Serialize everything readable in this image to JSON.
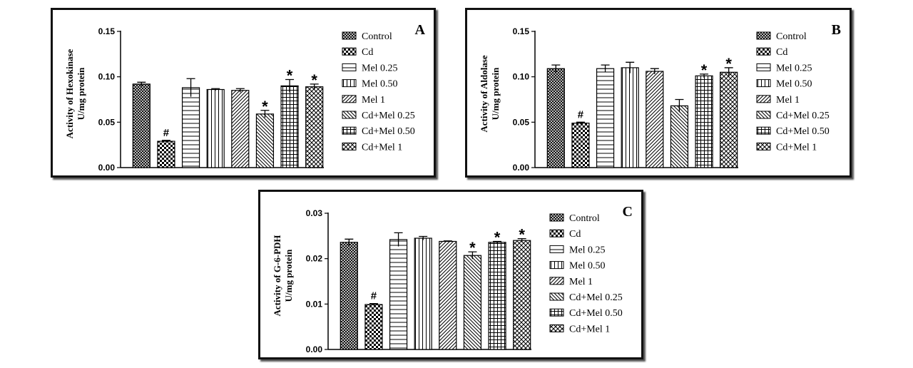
{
  "legend_items": [
    "Control",
    "Cd",
    "Mel 0.25",
    "Mel 0.50",
    "Mel 1",
    "Cd+Mel 0.25",
    "Cd+Mel 0.50",
    "Cd+Mel 1"
  ],
  "chart_data": [
    {
      "type": "bar",
      "panel_letter": "A",
      "title": "",
      "ylabel": [
        "Activity of Hexokinase",
        "U/mg protein"
      ],
      "xlabel": "",
      "ylim": [
        0,
        0.15
      ],
      "yticks": [
        "0.00",
        "0.05",
        "0.10",
        "0.15"
      ],
      "categories": [
        "Control",
        "Cd",
        "Mel 0.25",
        "Mel 0.50",
        "Mel 1",
        "Cd+Mel 0.25",
        "Cd+Mel 0.50",
        "Cd+Mel 1"
      ],
      "values": [
        0.092,
        0.029,
        0.088,
        0.086,
        0.085,
        0.059,
        0.09,
        0.089
      ],
      "errors": [
        0.002,
        0.001,
        0.01,
        0.001,
        0.002,
        0.004,
        0.007,
        0.003
      ],
      "marks": [
        "",
        "#",
        "",
        "",
        "",
        "*",
        "*",
        "*"
      ],
      "legend": "right",
      "grid": false
    },
    {
      "type": "bar",
      "panel_letter": "B",
      "title": "",
      "ylabel": [
        "Activity of Aldolase",
        "U/mg protein"
      ],
      "xlabel": "",
      "ylim": [
        0,
        0.15
      ],
      "yticks": [
        "0.00",
        "0.05",
        "0.10",
        "0.15"
      ],
      "categories": [
        "Control",
        "Cd",
        "Mel 0.25",
        "Mel 0.50",
        "Mel 1",
        "Cd+Mel 0.25",
        "Cd+Mel 0.50",
        "Cd+Mel 1"
      ],
      "values": [
        0.109,
        0.049,
        0.109,
        0.11,
        0.106,
        0.068,
        0.101,
        0.105
      ],
      "errors": [
        0.004,
        0.001,
        0.004,
        0.006,
        0.003,
        0.007,
        0.002,
        0.005
      ],
      "marks": [
        "",
        "#",
        "",
        "",
        "",
        "",
        "*",
        "*"
      ],
      "legend": "right",
      "grid": false
    },
    {
      "type": "bar",
      "panel_letter": "C",
      "title": "",
      "ylabel": [
        "Activity of G-6-PDH",
        "U/mg protein"
      ],
      "xlabel": "",
      "ylim": [
        0,
        0.03
      ],
      "yticks": [
        "0.00",
        "0.01",
        "0.02",
        "0.03"
      ],
      "categories": [
        "Control",
        "Cd",
        "Mel 0.25",
        "Mel 0.50",
        "Mel 1",
        "Cd+Mel 0.25",
        "Cd+Mel 0.50",
        "Cd+Mel 1"
      ],
      "values": [
        0.0236,
        0.0099,
        0.0242,
        0.0245,
        0.0238,
        0.0207,
        0.0236,
        0.024
      ],
      "errors": [
        0.0007,
        0.0002,
        0.0015,
        0.0004,
        0.0001,
        0.0008,
        0.0002,
        0.0004
      ],
      "marks": [
        "",
        "#",
        "",
        "",
        "",
        "*",
        "*",
        "*"
      ],
      "legend": "right",
      "grid": false
    }
  ]
}
